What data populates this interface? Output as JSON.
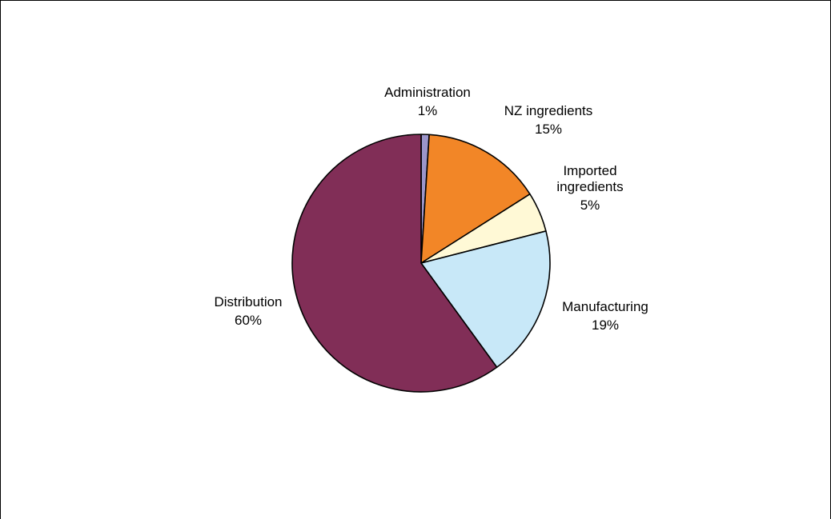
{
  "chart_data": {
    "type": "pie",
    "title": "",
    "slices": [
      {
        "label": "Administration",
        "value": 1,
        "value_label": "1%",
        "color": "#9b95c9"
      },
      {
        "label": "NZ ingredients",
        "value": 15,
        "value_label": "15%",
        "color": "#f28627"
      },
      {
        "label": "Imported ingredients",
        "value": 5,
        "value_label": "5%",
        "color": "#fff9d6"
      },
      {
        "label": "Manufacturing",
        "value": 19,
        "value_label": "19%",
        "color": "#c8e8f8"
      },
      {
        "label": "Distribution",
        "value": 60,
        "value_label": "60%",
        "color": "#812e57"
      }
    ],
    "legend": "none",
    "start_angle": "12 o'clock",
    "direction": "clockwise"
  }
}
